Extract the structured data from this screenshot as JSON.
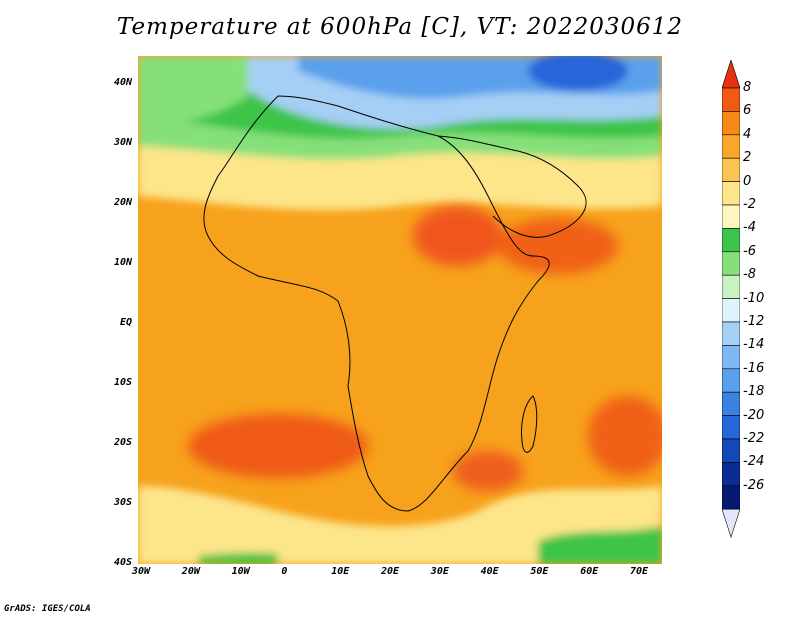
{
  "title": "Temperature at 600hPa [C], VT: 2022030612",
  "credit": "GrADS: IGES/COLA",
  "map": {
    "lon_range": [
      -30,
      75
    ],
    "lat_range": [
      -40,
      45
    ],
    "lat_ticks": [
      "40N",
      "30N",
      "20N",
      "10N",
      "EQ",
      "10S",
      "20S",
      "30S",
      "40S"
    ],
    "lon_ticks": [
      "30W",
      "20W",
      "10W",
      "0",
      "10E",
      "20E",
      "30E",
      "40E",
      "50E",
      "60E",
      "70E"
    ],
    "regions": [
      {
        "name": "north-cold-core",
        "color": "#2566d8"
      },
      {
        "name": "north-blue",
        "color": "#5aa0ec"
      },
      {
        "name": "north-light-blue",
        "color": "#a6cff6"
      },
      {
        "name": "north-green",
        "color": "#3ec44a"
      },
      {
        "name": "north-light-green",
        "color": "#86e07a"
      },
      {
        "name": "sahara-yellow",
        "color": "#fde58a"
      },
      {
        "name": "tropics-orange",
        "color": "#f7a21c"
      },
      {
        "name": "sudan-dark-orange",
        "color": "#f0561a"
      },
      {
        "name": "arabian-sea-dark-orange",
        "color": "#f06018"
      },
      {
        "name": "south-atlantic-dark-orange",
        "color": "#ef5a18"
      },
      {
        "name": "mozambique-dark-orange",
        "color": "#ee5f1a"
      },
      {
        "name": "south-yellow",
        "color": "#fde58a"
      },
      {
        "name": "southern-ocean-green",
        "color": "#3ec44a"
      }
    ]
  },
  "colorbar": {
    "labels": [
      "8",
      "6",
      "4",
      "2",
      "0",
      "-2",
      "-4",
      "-6",
      "-8",
      "-10",
      "-12",
      "-14",
      "-16",
      "-18",
      "-20",
      "-22",
      "-24",
      "-26"
    ],
    "colors": [
      "#e8320f",
      "#f05a14",
      "#f58a1a",
      "#f9a62c",
      "#fbc350",
      "#fde58a",
      "#fff5be",
      "#3ec44a",
      "#86e07a",
      "#c8f2c0",
      "#e0f3fb",
      "#a6cff6",
      "#80b8f2",
      "#5aa0ec",
      "#3a82e2",
      "#2566d8",
      "#1448b8",
      "#0a2c94",
      "#061a70",
      "#e6e6fa"
    ]
  }
}
